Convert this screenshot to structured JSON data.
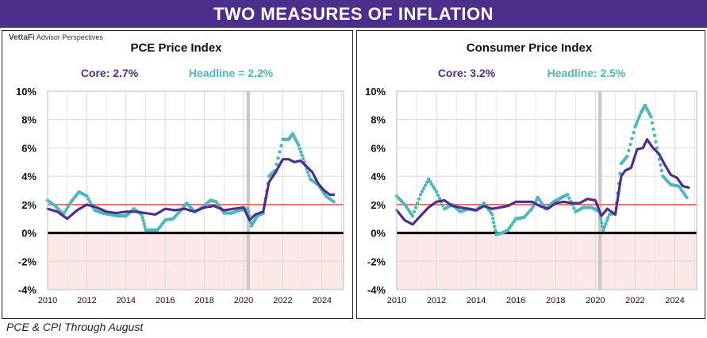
{
  "header": {
    "title": "TWO MEASURES OF INFLATION"
  },
  "logo": {
    "brand": "VettaFi",
    "sub": "Advisor Perspectives"
  },
  "footnote": "PCE & CPI Through August",
  "colors": {
    "core": "#4b2f8a",
    "headline": "#4db8b8",
    "target": "#e06666",
    "negative_band": "#fce8e8",
    "recession": "#c8c8c8",
    "banner": "#4b2f8a"
  },
  "chart_data": [
    {
      "type": "line",
      "title": "PCE Price Index",
      "core_label": "Core: 2.7%",
      "headline_label": "Headline = 2.2%",
      "xticks": [
        "2010",
        "2012",
        "2014",
        "2016",
        "2018",
        "2020",
        "2022",
        "2024"
      ],
      "yticks": [
        "10%",
        "8%",
        "6%",
        "4%",
        "2%",
        "0%",
        "-2%",
        "-4%"
      ],
      "ylim": [
        -4,
        10
      ],
      "xlim": [
        2010.0,
        2025.1
      ],
      "target": 2,
      "recession": [
        2020.15,
        2020.32
      ],
      "grid": true,
      "series": [
        {
          "name": "Core",
          "style": "line",
          "x": [
            2010.0,
            2010.5,
            2011.0,
            2011.5,
            2012.0,
            2012.5,
            2013.0,
            2013.5,
            2014.0,
            2014.5,
            2015.0,
            2015.5,
            2016.0,
            2016.5,
            2017.0,
            2017.5,
            2018.0,
            2018.5,
            2019.0,
            2019.5,
            2020.0,
            2020.3,
            2020.6,
            2021.0,
            2021.3,
            2021.6,
            2022.0,
            2022.3,
            2022.6,
            2022.9,
            2023.2,
            2023.5,
            2023.8,
            2024.1,
            2024.4,
            2024.6
          ],
          "values": [
            1.7,
            1.5,
            1.0,
            1.6,
            2.0,
            1.8,
            1.5,
            1.4,
            1.5,
            1.5,
            1.4,
            1.3,
            1.7,
            1.6,
            1.7,
            1.5,
            1.8,
            1.9,
            1.6,
            1.7,
            1.8,
            0.9,
            1.3,
            1.5,
            3.6,
            4.2,
            5.2,
            5.2,
            5.0,
            5.1,
            4.7,
            4.3,
            3.5,
            3.0,
            2.7,
            2.7
          ]
        },
        {
          "name": "Headline",
          "style": "dots",
          "x": [
            2010.0,
            2010.4,
            2010.8,
            2011.2,
            2011.6,
            2012.0,
            2012.4,
            2012.8,
            2013.2,
            2013.6,
            2014.0,
            2014.4,
            2014.8,
            2015.0,
            2015.3,
            2015.6,
            2016.0,
            2016.4,
            2016.8,
            2017.1,
            2017.5,
            2017.9,
            2018.3,
            2018.6,
            2019.0,
            2019.4,
            2019.8,
            2020.2,
            2020.4,
            2020.7,
            2021.0,
            2021.3,
            2021.6,
            2022.0,
            2022.3,
            2022.5,
            2022.8,
            2023.1,
            2023.4,
            2023.8,
            2024.2,
            2024.6
          ],
          "values": [
            2.3,
            1.9,
            1.3,
            2.2,
            2.9,
            2.6,
            1.6,
            1.4,
            1.3,
            1.2,
            1.2,
            1.7,
            1.3,
            0.2,
            0.2,
            0.2,
            0.9,
            1.0,
            1.6,
            2.1,
            1.5,
            1.8,
            2.3,
            2.2,
            1.4,
            1.4,
            1.6,
            1.7,
            0.5,
            1.2,
            1.4,
            4.0,
            4.4,
            6.6,
            6.6,
            7.0,
            6.2,
            5.0,
            3.8,
            3.4,
            2.6,
            2.2
          ]
        }
      ]
    },
    {
      "type": "line",
      "title": "Consumer Price Index",
      "core_label": "Core: 3.2%",
      "headline_label": "Headline: 2.5%",
      "xticks": [
        "2010",
        "2012",
        "2014",
        "2016",
        "2018",
        "2020",
        "2022",
        "2024"
      ],
      "yticks": [
        "10%",
        "8%",
        "6%",
        "4%",
        "2%",
        "0%",
        "-2%",
        "-4%"
      ],
      "ylim": [
        -4,
        10
      ],
      "xlim": [
        2010.0,
        2025.1
      ],
      "target": 2,
      "recession": [
        2020.15,
        2020.32
      ],
      "grid": true,
      "series": [
        {
          "name": "Core",
          "style": "line",
          "x": [
            2010.0,
            2010.4,
            2010.8,
            2011.2,
            2011.6,
            2012.0,
            2012.4,
            2012.8,
            2013.2,
            2013.6,
            2014.0,
            2014.4,
            2014.8,
            2015.2,
            2015.6,
            2016.0,
            2016.4,
            2016.8,
            2017.2,
            2017.6,
            2018.0,
            2018.4,
            2018.8,
            2019.2,
            2019.6,
            2020.0,
            2020.3,
            2020.6,
            2021.0,
            2021.3,
            2021.5,
            2021.8,
            2022.1,
            2022.4,
            2022.6,
            2022.9,
            2023.2,
            2023.5,
            2023.8,
            2024.1,
            2024.4,
            2024.7
          ],
          "values": [
            1.6,
            0.9,
            0.6,
            1.2,
            1.8,
            2.2,
            2.3,
            1.9,
            1.8,
            1.7,
            1.6,
            1.9,
            1.7,
            1.8,
            1.9,
            2.2,
            2.2,
            2.2,
            1.9,
            1.7,
            2.1,
            2.2,
            2.1,
            2.1,
            2.4,
            2.3,
            1.2,
            1.7,
            1.3,
            4.0,
            4.4,
            4.6,
            5.9,
            6.0,
            6.6,
            6.0,
            5.6,
            4.8,
            4.1,
            3.9,
            3.3,
            3.2
          ]
        },
        {
          "name": "Headline",
          "style": "dots",
          "x": [
            2010.0,
            2010.4,
            2010.8,
            2011.2,
            2011.6,
            2012.0,
            2012.4,
            2012.8,
            2013.2,
            2013.6,
            2014.0,
            2014.4,
            2014.8,
            2015.0,
            2015.3,
            2015.6,
            2016.0,
            2016.4,
            2016.8,
            2017.1,
            2017.5,
            2017.9,
            2018.3,
            2018.6,
            2019.0,
            2019.4,
            2019.8,
            2020.2,
            2020.4,
            2020.7,
            2021.0,
            2021.3,
            2021.6,
            2022.0,
            2022.3,
            2022.5,
            2022.8,
            2023.1,
            2023.4,
            2023.8,
            2024.2,
            2024.6
          ],
          "values": [
            2.6,
            2.0,
            1.2,
            2.7,
            3.8,
            2.9,
            1.7,
            2.0,
            1.5,
            1.7,
            1.6,
            2.1,
            1.3,
            -0.1,
            0.0,
            0.2,
            1.0,
            1.1,
            1.7,
            2.5,
            1.7,
            2.2,
            2.5,
            2.7,
            1.5,
            1.8,
            1.8,
            1.5,
            0.2,
            1.3,
            1.4,
            4.9,
            5.4,
            7.5,
            8.5,
            9.0,
            8.2,
            6.0,
            4.0,
            3.4,
            3.3,
            2.5
          ]
        }
      ]
    }
  ]
}
